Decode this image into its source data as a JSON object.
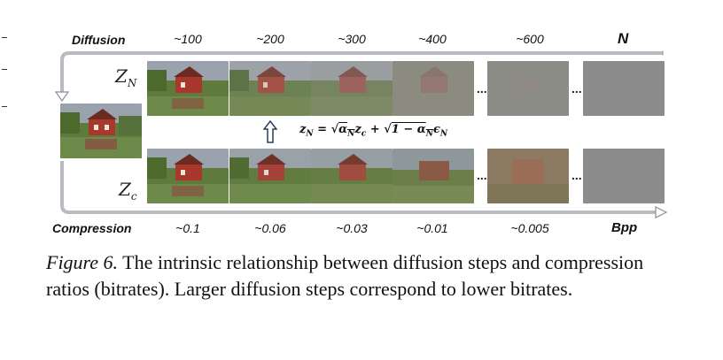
{
  "figure": {
    "diffusion_label": "Diffusion",
    "diffusion_steps": [
      "~100",
      "~200",
      "~300",
      "~400",
      "~600"
    ],
    "diffusion_unit": "N",
    "compression_label": "Compression",
    "bitrates": [
      "~0.1",
      "~0.06",
      "~0.03",
      "~0.01",
      "~0.005"
    ],
    "bitrate_unit": "Bpp",
    "latent_top": "Z",
    "latent_top_sub": "N",
    "latent_bottom": "Z",
    "latent_bottom_sub": "c",
    "ellipsis": "...",
    "formula": {
      "lhs": "z",
      "lhs_sub": "N",
      "eq": " = ",
      "sqrt1": "α",
      "sqrt1_sub": "N",
      "mid": "z",
      "mid_sub": "c",
      "plus": " + ",
      "sqrt2": "1 − α",
      "sqrt2_sub": "N",
      "eps": "ϵ",
      "eps_sub": "N"
    }
  },
  "caption": {
    "label": "Figure 6.",
    "text": " The intrinsic relationship between diffusion steps and compression ratios (bitrates). Larger diffusion steps correspond to lower bitrates."
  },
  "colors": {
    "arrow": "#b8bcc2",
    "arrow_stroke": "#8a8f96",
    "noise": "#8c8c8c"
  }
}
